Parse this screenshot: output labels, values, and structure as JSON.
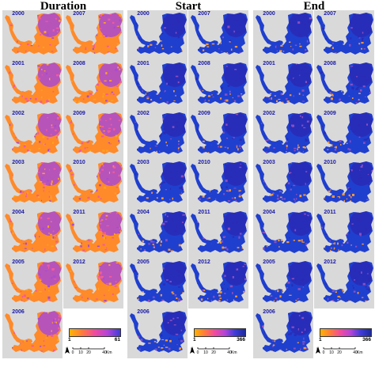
{
  "panels": [
    {
      "title": "Duration",
      "scheme": "duration",
      "years_left": [
        "2000",
        "2001",
        "2002",
        "2003",
        "2004",
        "2005",
        "2006"
      ],
      "years_right": [
        "2007",
        "2008",
        "2009",
        "2010",
        "2011",
        "2012"
      ],
      "legend": {
        "min": "1",
        "max": "61",
        "colors": [
          "#ffb300",
          "#ff7a3d",
          "#f04aa0",
          "#b244d8",
          "#3d3cd8"
        ]
      }
    },
    {
      "title": "Start",
      "scheme": "start",
      "years_left": [
        "2000",
        "2001",
        "2002",
        "2003",
        "2004",
        "2005",
        "2006"
      ],
      "years_right": [
        "2007",
        "2008",
        "2009",
        "2010",
        "2011",
        "2012"
      ],
      "legend": {
        "min": "1",
        "max": "366",
        "colors": [
          "#ffb300",
          "#ff7a3d",
          "#f04aa0",
          "#b244d8",
          "#3d3cd8",
          "#1e2a9a"
        ]
      }
    },
    {
      "title": "End",
      "scheme": "end",
      "years_left": [
        "2000",
        "2001",
        "2002",
        "2003",
        "2004",
        "2005",
        "2006"
      ],
      "years_right": [
        "2007",
        "2008",
        "2009",
        "2010",
        "2011",
        "2012"
      ],
      "legend": {
        "min": "1",
        "max": "366",
        "colors": [
          "#ffb300",
          "#ff7a3d",
          "#f04aa0",
          "#b244d8",
          "#3d3cd8",
          "#1e2a9a"
        ]
      }
    }
  ],
  "scale": {
    "labels": [
      "0",
      "10",
      "20",
      "40"
    ],
    "unit": "Km",
    "north": "N"
  },
  "colors": {
    "map_bg": "#d9d9d9",
    "year_label": "#1a1aa6",
    "duration": [
      "#ffa21f",
      "#ff8a2a",
      "#f35a9a",
      "#a94ad4"
    ],
    "start": [
      "#1f3fcf",
      "#2a2ab5",
      "#f59a3a",
      "#8a4fbf"
    ],
    "end": [
      "#1f3fcf",
      "#2a2ab5",
      "#f59a3a",
      "#8a4fbf"
    ]
  }
}
